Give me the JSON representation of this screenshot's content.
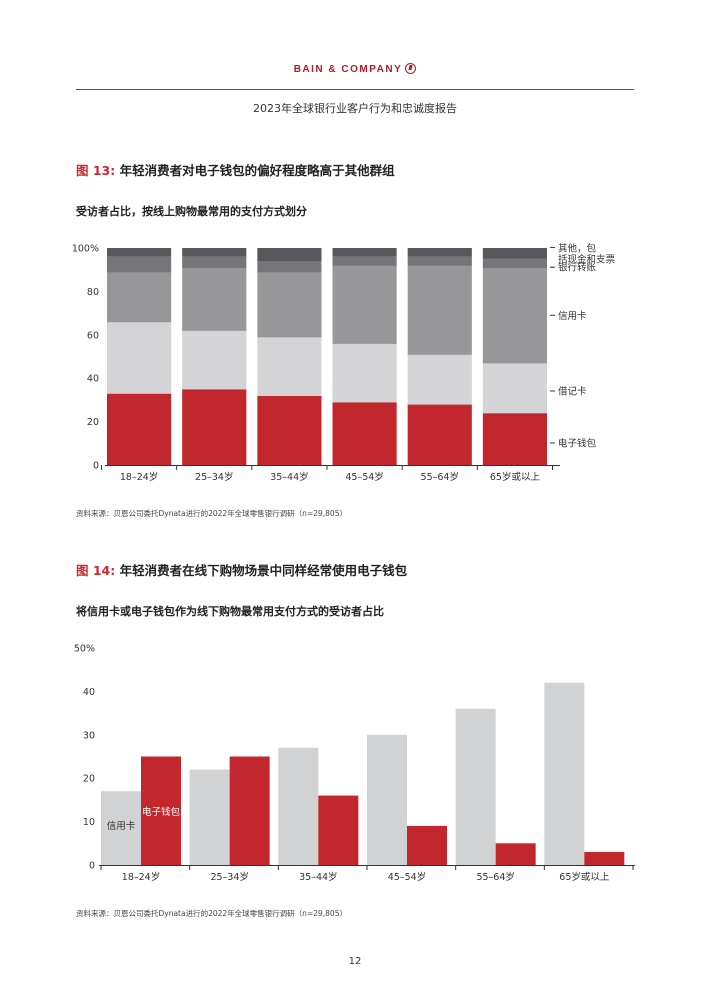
{
  "header": {
    "brand": "BAIN & COMPANY",
    "report_title": "2023年全球银行业客户行为和忠诚度报告"
  },
  "figure13": {
    "label": "图 13:",
    "title": "年轻消费者对电子钱包的偏好程度略高于其他群组",
    "subtitle": "受访者占比，按线上购物最常用的支付方式划分",
    "source": "资料来源：贝恩公司委托Dynata进行的2022年全球零售银行调研（n=29,805）"
  },
  "figure14": {
    "label": "图 14:",
    "title": "年轻消费者在线下购物场景中同样经常使用电子钱包",
    "subtitle": "将信用卡或电子钱包作为线下购物最常用支付方式的受访者占比",
    "source": "资料来源：贝恩公司委托Dynata进行的2022年全球零售银行调研（n=29,805）"
  },
  "page_number": "12",
  "colors": {
    "red": "#c1272d",
    "brand_red": "#b31b29",
    "light_gray": "#d4d4d6",
    "mid_gray": "#97979a",
    "dark_gray": "#76767a",
    "darkest_gray": "#58585c",
    "bar_light": "#d1d2d4"
  },
  "chart_data": [
    {
      "type": "bar",
      "stacked": true,
      "categories": [
        "18–24岁",
        "25–34岁",
        "35–44岁",
        "45–54岁",
        "55–64岁",
        "65岁或以上"
      ],
      "series": [
        {
          "name": "电子钱包",
          "values": [
            33,
            35,
            32,
            29,
            28,
            24
          ]
        },
        {
          "name": "借记卡",
          "values": [
            33,
            27,
            27,
            27,
            23,
            23
          ]
        },
        {
          "name": "信用卡",
          "values": [
            23,
            29,
            30,
            36,
            41,
            44
          ]
        },
        {
          "name": "银行转账",
          "values": [
            7,
            5,
            5,
            4,
            4,
            4
          ]
        },
        {
          "name": "其他，包括现金和支票",
          "values": [
            4,
            4,
            6,
            4,
            4,
            5
          ]
        }
      ],
      "yticks": [
        "0",
        "20",
        "40",
        "60",
        "80",
        "100%"
      ],
      "ylim": [
        0,
        100
      ],
      "grid": false,
      "legend": "right"
    },
    {
      "type": "bar",
      "categories": [
        "18–24岁",
        "25–34岁",
        "35–44岁",
        "45–54岁",
        "55–64岁",
        "65岁或以上"
      ],
      "series": [
        {
          "name": "信用卡",
          "values": [
            17,
            22,
            27,
            30,
            36,
            42
          ]
        },
        {
          "name": "电子钱包",
          "values": [
            25,
            25,
            16,
            9,
            5,
            3
          ]
        }
      ],
      "yticks": [
        "0",
        "10",
        "20",
        "30",
        "40",
        "50%"
      ],
      "ylim": [
        0,
        50
      ],
      "grid": false,
      "legend": "inside-first-group"
    }
  ]
}
